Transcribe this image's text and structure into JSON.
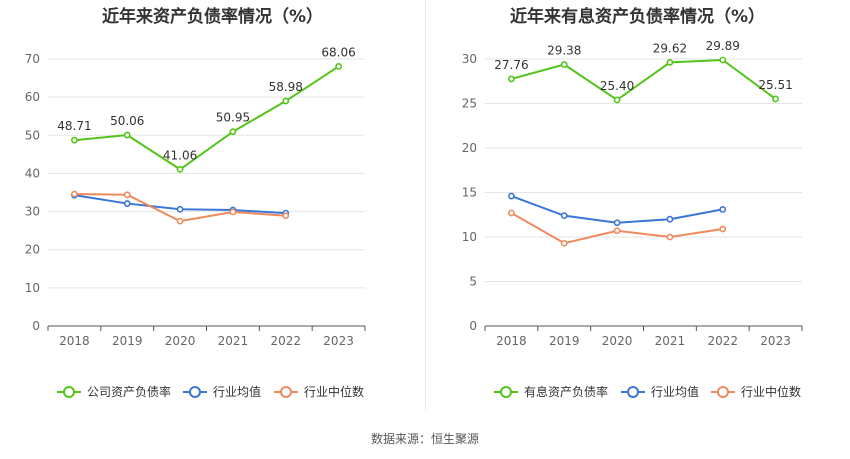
{
  "source_text": "数据来源：恒生聚源",
  "chart_data": [
    {
      "type": "line",
      "title": "近年来资产负债率情况（%）",
      "x": [
        "2018",
        "2019",
        "2020",
        "2021",
        "2022",
        "2023"
      ],
      "ylim": [
        0,
        70
      ],
      "yticks": [
        0,
        10,
        20,
        30,
        40,
        50,
        60,
        70
      ],
      "grid": true,
      "legend_position": "bottom",
      "series": [
        {
          "name": "公司资产负债率",
          "color": "#52c41a",
          "values": [
            48.71,
            50.06,
            41.06,
            50.95,
            58.98,
            68.06
          ],
          "labels": [
            "48.71",
            "50.06",
            "41.06",
            "50.95",
            "58.98",
            "68.06"
          ]
        },
        {
          "name": "行业均值",
          "color": "#3a75d8",
          "values": [
            34.3,
            32.1,
            30.6,
            30.4,
            29.6,
            null
          ]
        },
        {
          "name": "行业中位数",
          "color": "#f08a5d",
          "values": [
            34.6,
            34.4,
            27.5,
            29.9,
            28.9,
            null
          ]
        }
      ]
    },
    {
      "type": "line",
      "title": "近年来有息资产负债率情况（%）",
      "x": [
        "2018",
        "2019",
        "2020",
        "2021",
        "2022",
        "2023"
      ],
      "ylim": [
        0,
        30
      ],
      "yticks": [
        0,
        5,
        10,
        15,
        20,
        25,
        30
      ],
      "grid": true,
      "legend_position": "bottom",
      "series": [
        {
          "name": "有息资产负债率",
          "color": "#52c41a",
          "values": [
            27.76,
            29.38,
            25.4,
            29.62,
            29.89,
            25.51
          ],
          "labels": [
            "27.76",
            "29.38",
            "25.40",
            "29.62",
            "29.89",
            "25.51"
          ]
        },
        {
          "name": "行业均值",
          "color": "#3a75d8",
          "values": [
            14.6,
            12.4,
            11.6,
            12.0,
            13.1,
            null
          ]
        },
        {
          "name": "行业中位数",
          "color": "#f08a5d",
          "values": [
            12.7,
            9.3,
            10.7,
            10.0,
            10.9,
            null
          ]
        }
      ]
    }
  ]
}
